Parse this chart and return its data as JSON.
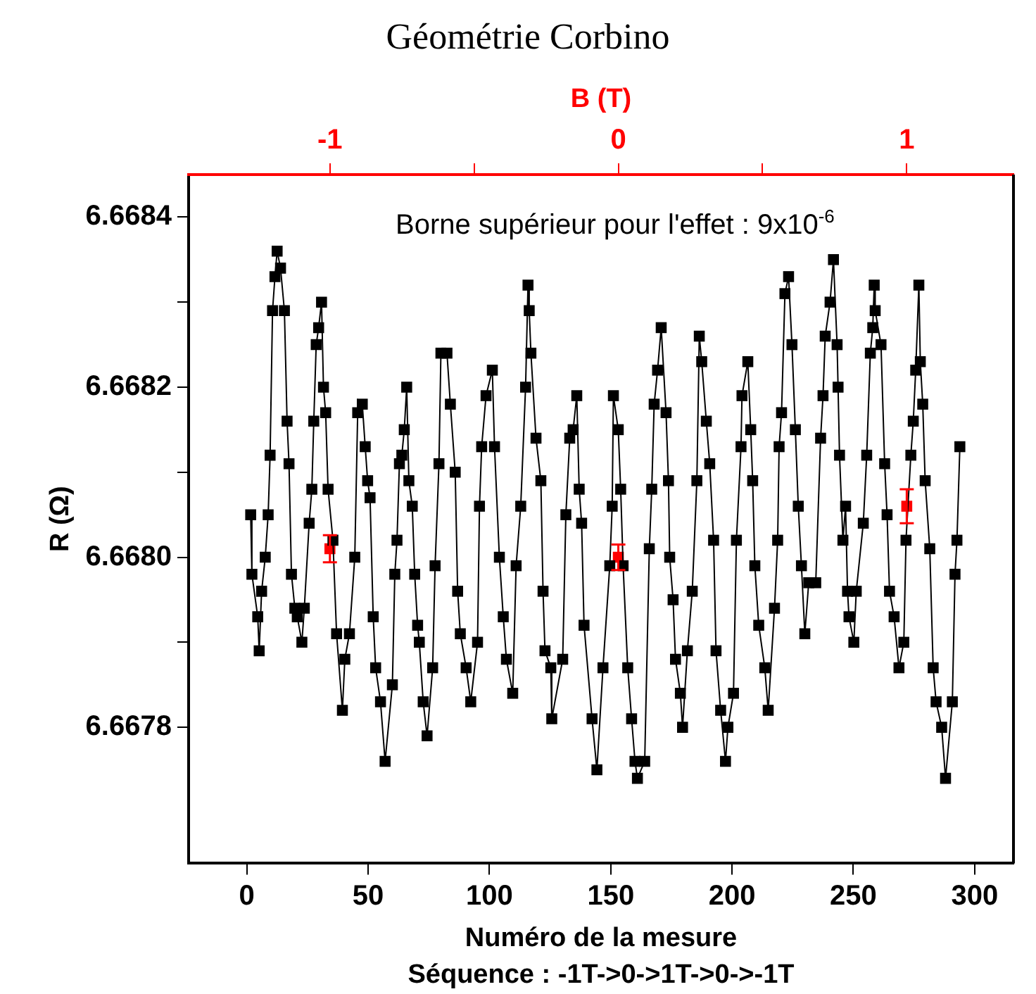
{
  "chart_data": {
    "type": "line",
    "title": "Géométrie Corbino",
    "xlabel": "Numéro de la mesure",
    "ylabel": "R (Ω)",
    "x2label": "B (T)",
    "annotations": [
      "Borne supérieur pour l'effet : 9x10$^{-6}$",
      "Séquence : -1T->0->1T->0->-1T"
    ],
    "xlim": [
      -24,
      316
    ],
    "xticks": [
      0,
      50,
      100,
      150,
      200,
      250,
      300
    ],
    "x2lim": [
      -1.49,
      1.37
    ],
    "x2ticks": [
      -1,
      {
        "value": -0.5,
        "label": null
      },
      0,
      {
        "value": 0.5,
        "label": null
      },
      1
    ],
    "ylim": [
      6.66764,
      6.66845
    ],
    "yticks": [
      {
        "value": 6.6678,
        "label": "6.6678"
      },
      {
        "value": 6.6679,
        "label": null
      },
      {
        "value": 6.668,
        "label": "6.6680"
      },
      {
        "value": 6.6681,
        "label": null
      },
      {
        "value": 6.6682,
        "label": "6.6682"
      },
      {
        "value": 6.6683,
        "label": null
      },
      {
        "value": 6.6684,
        "label": "6.6684"
      }
    ],
    "grid": false,
    "legend": false,
    "marker": "square",
    "line_style": "solid",
    "series": [
      {
        "type": "line",
        "color": "#000000",
        "x": [
          1.6,
          2.1,
          4.5,
          5.1,
          6.1,
          7.6,
          8.8,
          9.6,
          10.6,
          11.6,
          12.5,
          13.9,
          15.5,
          16.6,
          17.4,
          18.4,
          19.8,
          20.8,
          22.7,
          23.7,
          25.7,
          26.8,
          27.6,
          28.6,
          29.6,
          30.8,
          31.6,
          32.5,
          33.5,
          35.5,
          37.0,
          39.4,
          40.4,
          42.3,
          44.5,
          45.7,
          47.6,
          48.8,
          49.8,
          50.8,
          52.1,
          53.1,
          55.1,
          57.0,
          60.0,
          61.0,
          61.9,
          62.9,
          63.9,
          64.9,
          65.9,
          66.8,
          68.2,
          69.2,
          70.4,
          71.1,
          72.7,
          74.3,
          76.6,
          77.6,
          79.2,
          80.0,
          82.5,
          83.9,
          85.9,
          86.9,
          88.0,
          90.4,
          92.3,
          95.1,
          95.9,
          96.8,
          98.6,
          101.2,
          102.1,
          104.1,
          105.7,
          107.0,
          109.6,
          111.0,
          112.9,
          114.9,
          115.9,
          116.4,
          117.1,
          119.2,
          121.2,
          122.1,
          122.9,
          125.3,
          125.7,
          130.2,
          131.5,
          133.1,
          134.5,
          136.0,
          137.0,
          138.0,
          139.0,
          142.3,
          144.3,
          146.8,
          149.6,
          150.6,
          151.1,
          153.1,
          154.1,
          155.1,
          157.0,
          158.6,
          160.0,
          161.0,
          164.0,
          165.9,
          166.9,
          167.9,
          169.3,
          170.8,
          172.8,
          173.8,
          174.3,
          175.7,
          176.7,
          178.7,
          179.6,
          181.6,
          183.6,
          185.5,
          186.5,
          187.5,
          189.4,
          190.8,
          192.4,
          193.4,
          195.3,
          197.3,
          198.3,
          200.6,
          201.8,
          203.7,
          204.1,
          206.5,
          207.7,
          208.5,
          209.4,
          211.0,
          213.5,
          214.9,
          217.5,
          218.8,
          219.4,
          220.4,
          221.8,
          223.3,
          224.7,
          226.1,
          227.3,
          228.6,
          230.0,
          231.6,
          234.5,
          236.5,
          237.5,
          238.4,
          240.4,
          241.8,
          243.3,
          243.7,
          244.3,
          245.7,
          246.8,
          247.6,
          248.2,
          250.2,
          251.2,
          254.1,
          255.5,
          257.0,
          258.0,
          258.6,
          259.0,
          261.4,
          262.9,
          263.9,
          264.9,
          266.8,
          268.8,
          270.8,
          271.7,
          273.7,
          274.7,
          275.7,
          277.0,
          277.6,
          278.6,
          279.6,
          281.5,
          282.9,
          284.1,
          286.4,
          288.0,
          290.8,
          291.9,
          292.7,
          293.9
        ],
        "values": [
          6.66805,
          6.66798,
          6.66793,
          6.66789,
          6.66796,
          6.668,
          6.66805,
          6.66812,
          6.66829,
          6.66833,
          6.66836,
          6.66834,
          6.66829,
          6.66816,
          6.66811,
          6.66798,
          6.66794,
          6.66793,
          6.6679,
          6.66794,
          6.66804,
          6.66808,
          6.66816,
          6.66825,
          6.66827,
          6.6683,
          6.6682,
          6.66817,
          6.66808,
          6.66802,
          6.66791,
          6.66782,
          6.66788,
          6.66791,
          6.668,
          6.66817,
          6.66818,
          6.66813,
          6.66809,
          6.66807,
          6.66793,
          6.66787,
          6.66783,
          6.66776,
          6.66785,
          6.66798,
          6.66802,
          6.66811,
          6.66812,
          6.66815,
          6.6682,
          6.66809,
          6.66806,
          6.66798,
          6.66792,
          6.6679,
          6.66783,
          6.66779,
          6.66787,
          6.66799,
          6.66811,
          6.66824,
          6.66824,
          6.66818,
          6.6681,
          6.66796,
          6.66791,
          6.66787,
          6.66783,
          6.6679,
          6.66806,
          6.66813,
          6.66819,
          6.66822,
          6.66813,
          6.668,
          6.66793,
          6.66788,
          6.66784,
          6.66799,
          6.66806,
          6.6682,
          6.66832,
          6.66829,
          6.66824,
          6.66814,
          6.66809,
          6.66796,
          6.66789,
          6.66787,
          6.66781,
          6.66788,
          6.66805,
          6.66814,
          6.66815,
          6.66819,
          6.66808,
          6.66804,
          6.66792,
          6.66781,
          6.66775,
          6.66787,
          6.66799,
          6.66806,
          6.66819,
          6.66815,
          6.66808,
          6.66799,
          6.66787,
          6.66781,
          6.66776,
          6.66774,
          6.66776,
          6.66801,
          6.66808,
          6.66818,
          6.66822,
          6.66827,
          6.66817,
          6.66809,
          6.668,
          6.66795,
          6.66788,
          6.66784,
          6.6678,
          6.66789,
          6.66796,
          6.66809,
          6.66826,
          6.66823,
          6.66816,
          6.66811,
          6.66802,
          6.66789,
          6.66782,
          6.66776,
          6.6678,
          6.66784,
          6.66802,
          6.66813,
          6.66819,
          6.66823,
          6.66815,
          6.66809,
          6.66799,
          6.66792,
          6.66787,
          6.66782,
          6.66794,
          6.66802,
          6.66813,
          6.66817,
          6.66831,
          6.66833,
          6.66825,
          6.66815,
          6.66806,
          6.66799,
          6.66791,
          6.66797,
          6.66797,
          6.66814,
          6.66819,
          6.66826,
          6.6683,
          6.66835,
          6.66825,
          6.6682,
          6.66812,
          6.66802,
          6.66806,
          6.66796,
          6.66793,
          6.6679,
          6.66796,
          6.66804,
          6.66812,
          6.66824,
          6.66827,
          6.66832,
          6.66829,
          6.66825,
          6.66811,
          6.66805,
          6.66796,
          6.66793,
          6.66787,
          6.6679,
          6.66802,
          6.66812,
          6.66816,
          6.66822,
          6.66832,
          6.66823,
          6.66818,
          6.66809,
          6.66801,
          6.66787,
          6.66783,
          6.6678,
          6.66774,
          6.66783,
          6.66798,
          6.66802,
          6.66813
        ]
      },
      {
        "type": "scatter",
        "color": "#ff0000",
        "axis": "x2",
        "x": [
          -1,
          0,
          1
        ],
        "values": [
          6.66801,
          6.668,
          6.66806
        ],
        "errors": [
          1.6e-05,
          1.5e-05,
          2e-05
        ]
      }
    ]
  }
}
